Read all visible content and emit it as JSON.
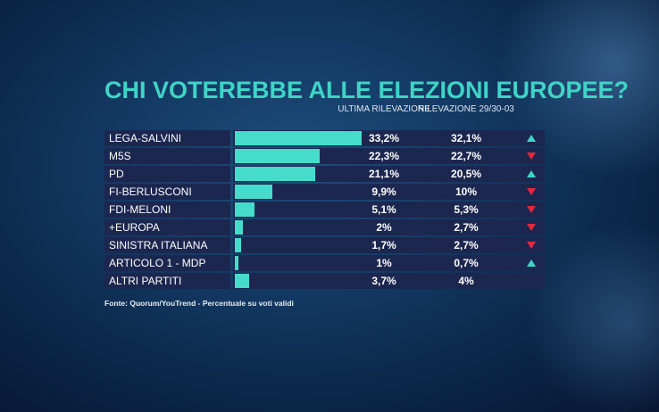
{
  "chart_data": {
    "type": "bar",
    "orientation": "horizontal",
    "title": "CHI VOTEREBBE ALLE ELEZIONI EUROPEE?",
    "column_headers": [
      "ULTIMA RILEVAZIONE",
      "RILEVAZIONE 29/30-03"
    ],
    "categories": [
      "LEGA-SALVINI",
      "M5S",
      "PD",
      "FI-BERLUSCONI",
      "FDI-MELONI",
      "+EUROPA",
      "SINISTRA ITALIANA",
      "ARTICOLO 1 - MDP",
      "ALTRI PARTITI"
    ],
    "series": [
      {
        "name": "ULTIMA RILEVAZIONE",
        "values": [
          33.2,
          22.3,
          21.1,
          9.9,
          5.1,
          2,
          1.7,
          1,
          3.7
        ],
        "labels": [
          "33,2%",
          "22,3%",
          "21,1%",
          "9,9%",
          "5,1%",
          "2%",
          "1,7%",
          "1%",
          "3,7%"
        ]
      },
      {
        "name": "RILEVAZIONE 29/30-03",
        "values": [
          32.1,
          22.7,
          20.5,
          10,
          5.3,
          2.7,
          2.7,
          0.7,
          4
        ],
        "labels": [
          "32,1%",
          "22,7%",
          "20,5%",
          "10%",
          "5,3%",
          "2,7%",
          "2,7%",
          "0,7%",
          "4%"
        ]
      }
    ],
    "trend": [
      "up",
      "down",
      "up",
      "down",
      "down",
      "down",
      "down",
      "up",
      ""
    ],
    "source": "Fonte: Quorum/YouTrend - Percentuale su voti validi",
    "colors": {
      "bar": "#46dccb",
      "title": "#3fd4c6",
      "up": "#3fd4c6",
      "down": "#e0293f",
      "row_bg": "#1c2750"
    }
  }
}
